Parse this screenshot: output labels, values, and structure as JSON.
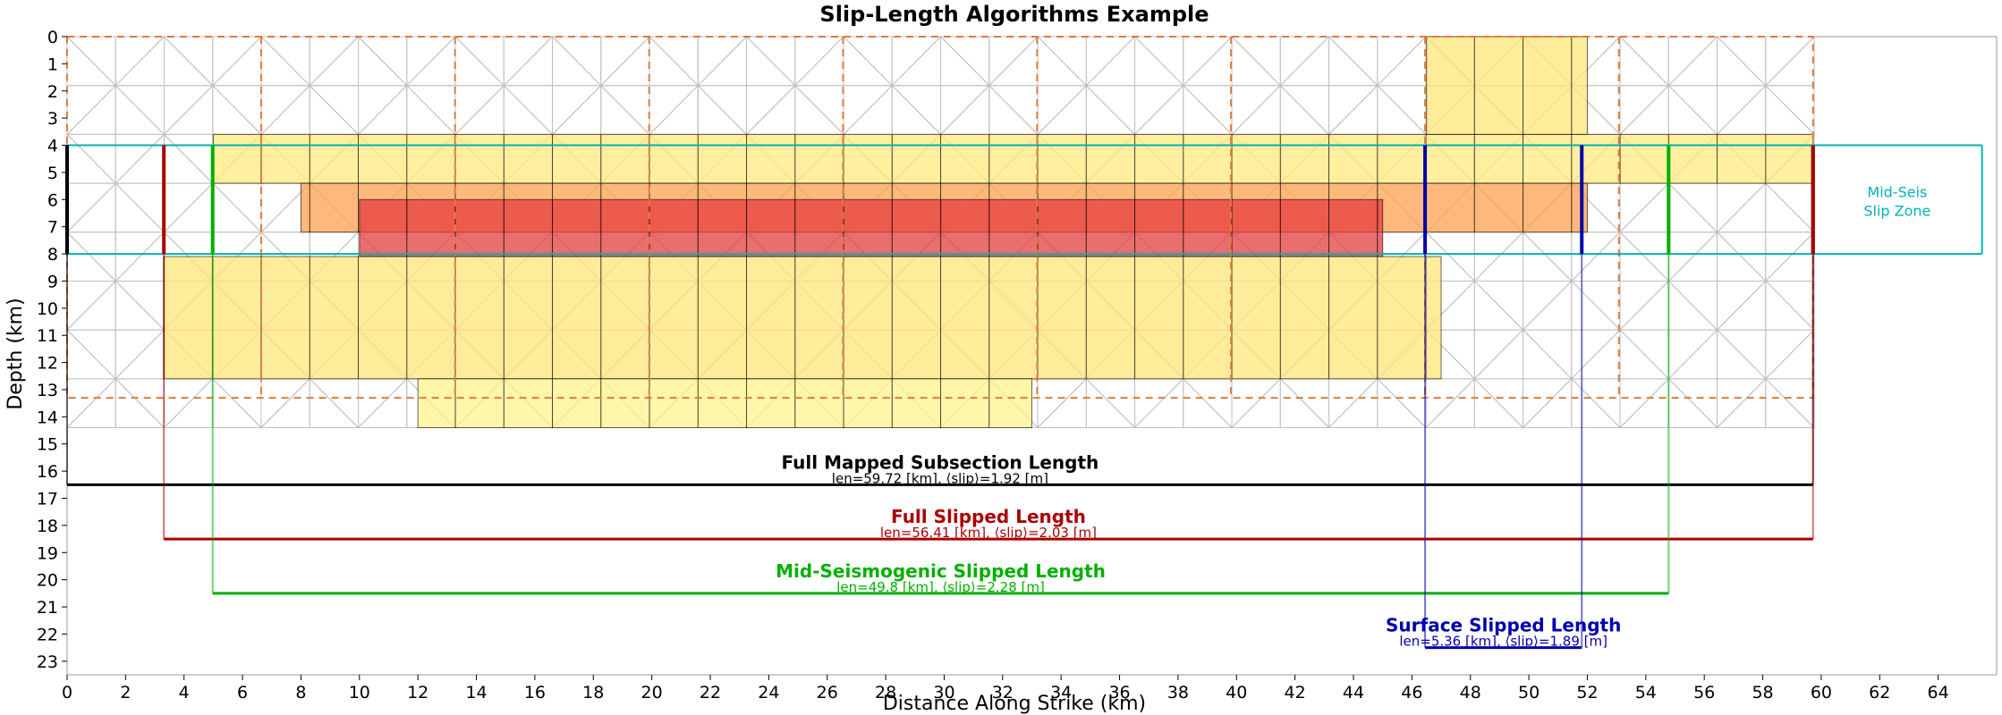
{
  "chart_data": {
    "type": "heatmap",
    "title": "Slip-Length Algorithms Example",
    "xlabel": "Distance Along Strike (km)",
    "ylabel": "Depth (km)",
    "xlim": [
      0,
      66
    ],
    "ylim": [
      23.5,
      0
    ],
    "xticks": [
      "0",
      "2",
      "4",
      "6",
      "8",
      "10",
      "12",
      "14",
      "16",
      "18",
      "20",
      "22",
      "24",
      "26",
      "28",
      "30",
      "32",
      "34",
      "36",
      "38",
      "40",
      "42",
      "44",
      "46",
      "48",
      "50",
      "52",
      "54",
      "56",
      "58",
      "60",
      "62",
      "64"
    ],
    "yticks": [
      "0",
      "1",
      "2",
      "3",
      "4",
      "5",
      "6",
      "7",
      "8",
      "9",
      "10",
      "11",
      "12",
      "13",
      "14",
      "15",
      "16",
      "17",
      "18",
      "19",
      "20",
      "21",
      "22",
      "23"
    ],
    "mesh": {
      "x_spacing_km": 1.66,
      "row_depths_km": [
        0,
        1.8,
        3.6,
        5.4,
        7.2,
        9.0,
        10.8,
        12.6,
        14.4
      ],
      "x_max_km": 59.72
    },
    "subsection_boundaries_km": [
      6.64,
      13.27,
      19.91,
      26.54,
      33.18,
      39.81,
      46.45,
      53.08
    ],
    "subsection_depth_range_km": [
      0,
      13.3
    ],
    "slip_patches": [
      {
        "xmin": 5,
        "xmax": 59.72,
        "zmin": 3.6,
        "zmax": 5.4,
        "intensity": 0.25
      },
      {
        "xmin": 8,
        "xmax": 52,
        "zmin": 5.4,
        "zmax": 7.2,
        "intensity": 0.5
      },
      {
        "xmin": 10,
        "xmax": 45,
        "zmin": 6,
        "zmax": 8.1,
        "intensity": 0.75
      },
      {
        "xmin": 3.3,
        "xmax": 47,
        "zmin": 8.1,
        "zmax": 12.6,
        "intensity": 0.3
      },
      {
        "xmin": 12,
        "xmax": 33,
        "zmin": 12.6,
        "zmax": 14.4,
        "intensity": 0.15
      },
      {
        "xmin": 46.5,
        "xmax": 52,
        "zmin": 0,
        "zmax": 3.6,
        "intensity": 0.3
      }
    ],
    "mid_seis_zone": {
      "zmin": 4,
      "zmax": 8,
      "label_line1": "Mid-Seis",
      "label_line2": "Slip Zone"
    },
    "measurements": [
      {
        "name": "Full Mapped Subsection Length",
        "detail": "len=59.72 [km], ⟨slip⟩=1.92 [m]",
        "x0": 0,
        "x1": 59.72,
        "bar_depth": 16.5,
        "color": "#000000",
        "marker_top": 4,
        "marker_bottom": 8
      },
      {
        "name": "Full Slipped Length",
        "detail": "len=56.41 [km], ⟨slip⟩=2.03 [m]",
        "x0": 3.31,
        "x1": 59.72,
        "bar_depth": 18.5,
        "color": "#aa0000",
        "marker_top": 4,
        "marker_bottom": 8
      },
      {
        "name": "Mid-Seismogenic Slipped Length",
        "detail": "len=49.8 [km], ⟨slip⟩=2.28 [m]",
        "x0": 4.98,
        "x1": 54.78,
        "bar_depth": 20.5,
        "color": "#00b000",
        "marker_top": 4,
        "marker_bottom": 8
      },
      {
        "name": "Surface Slipped Length",
        "detail": "len=5.36 [km], ⟨slip⟩=1.89 [m]",
        "x0": 46.45,
        "x1": 51.81,
        "bar_depth": 22.5,
        "color": "#0000aa",
        "marker_top": 4,
        "marker_bottom": 8
      }
    ],
    "grid": false,
    "legend": "none"
  }
}
